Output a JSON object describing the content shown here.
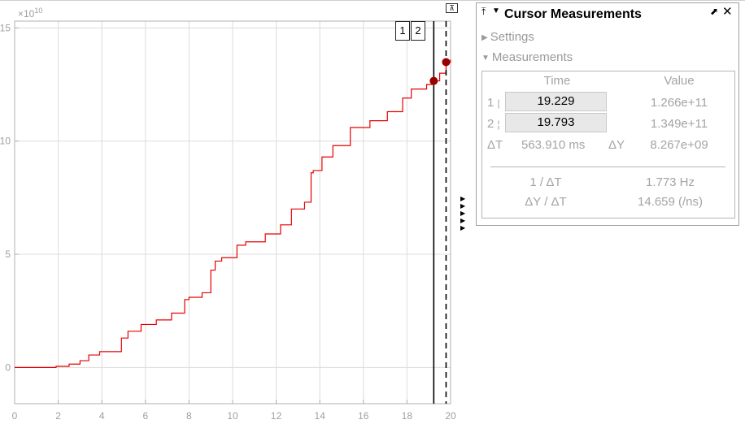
{
  "plot": {
    "exponent_label": "×10",
    "exponent_sup": "10",
    "x_min": 0,
    "x_max": 20,
    "y_min": -1.6,
    "y_max": 15.3,
    "x_ticks": [
      0,
      2,
      4,
      6,
      8,
      10,
      12,
      14,
      16,
      18,
      20
    ],
    "x_tick_labels": [
      "0",
      "2",
      "4",
      "6",
      "8",
      "10",
      "12",
      "14",
      "16",
      "18",
      "20"
    ],
    "y_ticks": [
      0,
      5,
      10,
      15
    ],
    "y_tick_labels": [
      "0",
      "5",
      "10",
      "15"
    ],
    "colors": {
      "line": "#e60000",
      "marker": "#990000",
      "grid": "#dcdcdc",
      "axis": "#b0b0b0",
      "ticktext": "#9e9e9e"
    },
    "series": {
      "x": [
        0,
        1,
        1.9,
        2.5,
        3.0,
        3.4,
        3.9,
        4.9,
        5.2,
        5.8,
        6.5,
        7.2,
        7.8,
        8.0,
        8.6,
        9.0,
        9.2,
        9.5,
        10.2,
        10.6,
        11.5,
        12.2,
        12.7,
        13.3,
        13.6,
        13.7,
        14.1,
        14.6,
        15.4,
        16.3,
        17.1,
        17.8,
        18.2,
        18.9,
        19.229,
        19.5,
        19.793,
        20.0
      ],
      "y": [
        0,
        0,
        0.05,
        0.15,
        0.3,
        0.55,
        0.7,
        1.3,
        1.6,
        1.9,
        2.1,
        2.4,
        3.0,
        3.1,
        3.3,
        4.3,
        4.7,
        4.85,
        5.4,
        5.55,
        5.9,
        6.3,
        7.0,
        7.3,
        8.6,
        8.7,
        9.3,
        9.8,
        10.6,
        10.9,
        11.3,
        11.9,
        12.3,
        12.5,
        12.66,
        13.0,
        13.49,
        13.6
      ]
    }
  },
  "cursors": {
    "c1": {
      "label": "1",
      "x": 19.229,
      "y": 12.66
    },
    "c2": {
      "label": "2",
      "x": 19.793,
      "y": 13.49
    }
  },
  "panel": {
    "title": "Cursor Measurements",
    "settings_label": "Settings",
    "measurements_label": "Measurements",
    "col_time": "Time",
    "col_value": "Value",
    "rows": [
      {
        "label": "1",
        "time": "19.229",
        "value": "1.266e+11"
      },
      {
        "label": "2",
        "time": "19.793",
        "value": "1.349e+11"
      }
    ],
    "dt_label": "ΔT",
    "dt_value": "563.910 ms",
    "dy_label": "ΔY",
    "dy_value": "8.267e+09",
    "inv_dt_label": "1 / ΔT",
    "inv_dt_value": "1.773 Hz",
    "dydt_label": "ΔY / ΔT",
    "dydt_value": "14.659 (/ns)"
  },
  "icons": {
    "pin": "⤒",
    "collapse": "▼",
    "undock": "⬈",
    "close": "✕",
    "expand_settings": "▶",
    "expand_measurements": "▼",
    "dock": "⊼",
    "side_arrow": "▶"
  }
}
